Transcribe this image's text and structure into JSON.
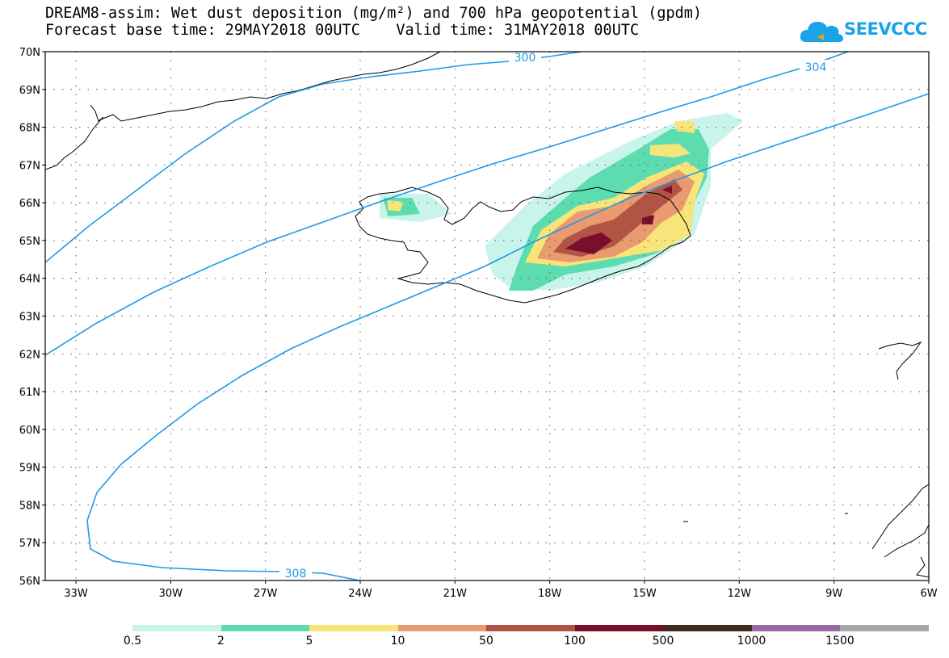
{
  "title_line1": "DREAM8-assim: Wet dust deposition (mg/m²) and 700 hPa geopotential (gpdm)",
  "title_line2": "Forecast base time: 29MAY2018 00UTC    Valid time: 31MAY2018 00UTC",
  "logo_text": "SEEVCCC",
  "lat_labels": [
    "70N",
    "69N",
    "68N",
    "67N",
    "66N",
    "65N",
    "64N",
    "63N",
    "62N",
    "61N",
    "60N",
    "59N",
    "58N",
    "57N",
    "56N"
  ],
  "lon_labels": [
    "33W",
    "30W",
    "27W",
    "24W",
    "21W",
    "18W",
    "15W",
    "12W",
    "9W",
    "6W"
  ],
  "contour_labels": [
    "300",
    "304",
    "308"
  ],
  "legend": {
    "colors": [
      "#c8f4ec",
      "#5ddcb0",
      "#f8e57a",
      "#e99a6f",
      "#b25444",
      "#7a0e2a",
      "#3d2a1a",
      "#9a6aa6",
      "#a8a8a8"
    ],
    "labels": [
      "0.5",
      "2",
      "5",
      "10",
      "50",
      "100",
      "500",
      "1000",
      "1500"
    ]
  },
  "colors": {
    "contour": "#1e9be6",
    "coast": "#000000"
  }
}
